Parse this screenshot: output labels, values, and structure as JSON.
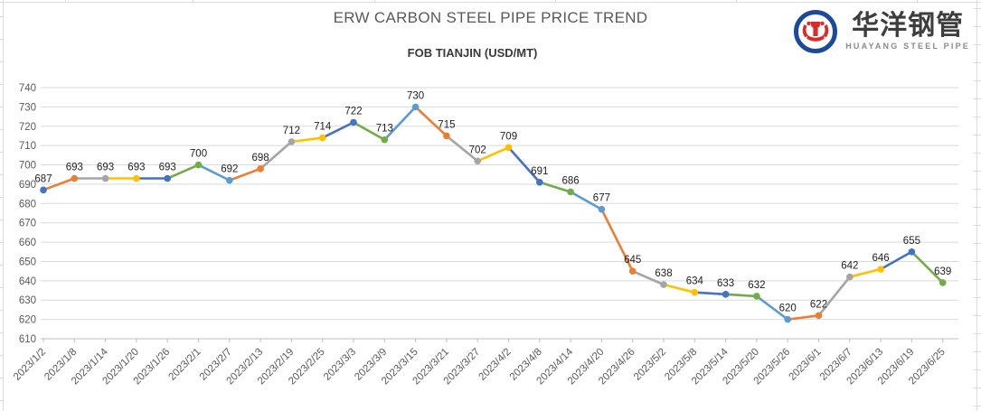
{
  "logo": {
    "cn_text": "华洋钢管",
    "en_text": "HUAYANG STEEL PIPE",
    "ring_color": "#1b4a9c",
    "emblem_color": "#d92b27",
    "cn_color": "#3d3d3d",
    "en_color": "#8a8a8a"
  },
  "chart_data": {
    "type": "line",
    "title": "ERW CARBON STEEL PIPE PRICE TREND",
    "subtitle": "FOB TIANJIN (USD/MT)",
    "categories": [
      "2023/1/2",
      "2023/1/8",
      "2023/1/14",
      "2023/1/20",
      "2023/1/26",
      "2023/2/1",
      "2023/2/7",
      "2023/2/13",
      "2023/2/19",
      "2023/2/25",
      "2023/3/3",
      "2023/3/9",
      "2023/3/15",
      "2023/3/21",
      "2023/3/27",
      "2023/4/2",
      "2023/4/8",
      "2023/4/14",
      "2023/4/20",
      "2023/4/26",
      "2023/5/2",
      "2023/5/8",
      "2023/5/14",
      "2023/5/20",
      "2023/5/26",
      "2023/6/1",
      "2023/6/7",
      "2023/6/13",
      "2023/6/19",
      "2023/6/25"
    ],
    "values": [
      687,
      693,
      693,
      693,
      693,
      700,
      692,
      698,
      712,
      714,
      722,
      713,
      730,
      715,
      702,
      709,
      691,
      686,
      677,
      645,
      638,
      634,
      633,
      632,
      620,
      622,
      642,
      646,
      655,
      639
    ],
    "point_colors": [
      "#4472C4",
      "#ED7D31",
      "#A5A5A5",
      "#FFC000",
      "#4472C4",
      "#70AD47",
      "#5B9BD5",
      "#ED7D31",
      "#A5A5A5",
      "#FFC000",
      "#4472C4",
      "#70AD47",
      "#5B9BD5",
      "#ED7D31",
      "#A5A5A5",
      "#FFC000",
      "#4472C4",
      "#70AD47",
      "#5B9BD5",
      "#ED7D31",
      "#A5A5A5",
      "#FFC000",
      "#4472C4",
      "#70AD47",
      "#5B9BD5",
      "#ED7D31",
      "#A5A5A5",
      "#FFC000",
      "#4472C4",
      "#70AD47"
    ],
    "data_labels": true,
    "xlabel": "",
    "ylabel": "",
    "y_ticks": [
      610,
      620,
      630,
      640,
      650,
      660,
      670,
      680,
      690,
      700,
      710,
      720,
      730,
      740
    ],
    "ylim": [
      610,
      740
    ],
    "x_label_rotation": -45,
    "grid": true,
    "legend_position": "none",
    "gridline_color": "#d9d9d9",
    "axis_line_color": "#bfbfbf",
    "tick_label_color": "#595959",
    "data_label_color": "#1f1f1f"
  }
}
